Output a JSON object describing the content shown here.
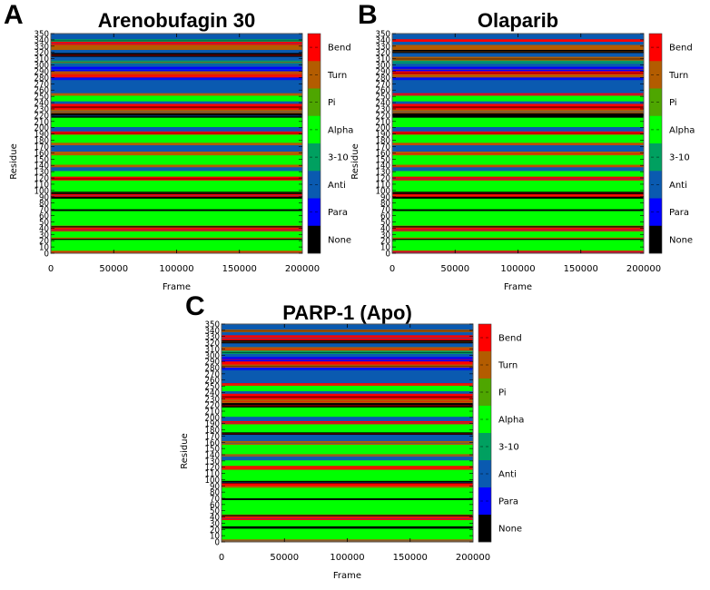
{
  "figure": {
    "panels": [
      {
        "letter": "A",
        "title": "Arenobufagin 30"
      },
      {
        "letter": "B",
        "title": "Olaparib"
      },
      {
        "letter": "C",
        "title": "PARP-1 (Apo)"
      }
    ]
  },
  "chart_data": [
    {
      "type": "heatmap",
      "panel": "A",
      "title": "Arenobufagin 30",
      "xlabel": "Frame",
      "ylabel": "Residue",
      "xlim": [
        0,
        200000
      ],
      "ylim": [
        0,
        350
      ],
      "xticks": [
        "0",
        "50000",
        "100000",
        "150000",
        "200000"
      ],
      "yticks": [
        "0",
        "10",
        "20",
        "30",
        "40",
        "50",
        "60",
        "70",
        "80",
        "90",
        "100",
        "110",
        "120",
        "130",
        "140",
        "150",
        "160",
        "170",
        "180",
        "190",
        "200",
        "210",
        "220",
        "230",
        "240",
        "250",
        "260",
        "270",
        "280",
        "290",
        "300",
        "310",
        "320",
        "330",
        "340",
        "350"
      ],
      "colorbar": {
        "labels": [
          "Bend",
          "Turn",
          "Pi",
          "Alpha",
          "3-10",
          "Anti",
          "Para",
          "None"
        ],
        "colors": [
          "#ff0000",
          "#b35c00",
          "#4ea600",
          "#00ff00",
          "#00a060",
          "#0a5ab0",
          "#0000ff",
          "#000000"
        ]
      },
      "bands": [
        {
          "from": 341,
          "to": 350,
          "ss": "Anti"
        },
        {
          "from": 337,
          "to": 341,
          "ss": "3-10"
        },
        {
          "from": 332,
          "to": 337,
          "ss": "Bend"
        },
        {
          "from": 324,
          "to": 332,
          "ss": "Turn"
        },
        {
          "from": 319,
          "to": 324,
          "ss": "Anti"
        },
        {
          "from": 313,
          "to": 319,
          "ss": "None"
        },
        {
          "from": 307,
          "to": 313,
          "ss": "Anti"
        },
        {
          "from": 302,
          "to": 307,
          "ss": "3-10"
        },
        {
          "from": 297,
          "to": 302,
          "ss": "Anti"
        },
        {
          "from": 290,
          "to": 297,
          "ss": "Para"
        },
        {
          "from": 285,
          "to": 290,
          "ss": "Turn"
        },
        {
          "from": 280,
          "to": 285,
          "ss": "Bend"
        },
        {
          "from": 276,
          "to": 280,
          "ss": "Para"
        },
        {
          "from": 255,
          "to": 276,
          "ss": "Anti"
        },
        {
          "from": 251,
          "to": 255,
          "ss": "Turn"
        },
        {
          "from": 242,
          "to": 251,
          "ss": "Alpha"
        },
        {
          "from": 238,
          "to": 242,
          "ss": "Anti"
        },
        {
          "from": 229,
          "to": 238,
          "ss": "Bend"
        },
        {
          "from": 223,
          "to": 229,
          "ss": "Turn"
        },
        {
          "from": 216,
          "to": 223,
          "ss": "None"
        },
        {
          "from": 201,
          "to": 216,
          "ss": "Alpha"
        },
        {
          "from": 194,
          "to": 201,
          "ss": "Anti"
        },
        {
          "from": 189,
          "to": 194,
          "ss": "Bend"
        },
        {
          "from": 176,
          "to": 189,
          "ss": "Alpha"
        },
        {
          "from": 172,
          "to": 176,
          "ss": "Turn"
        },
        {
          "from": 162,
          "to": 172,
          "ss": "Anti"
        },
        {
          "from": 156,
          "to": 162,
          "ss": "Turn"
        },
        {
          "from": 141,
          "to": 156,
          "ss": "Alpha"
        },
        {
          "from": 137,
          "to": 141,
          "ss": "Turn"
        },
        {
          "from": 131,
          "to": 137,
          "ss": "Anti"
        },
        {
          "from": 122,
          "to": 131,
          "ss": "Alpha"
        },
        {
          "from": 116,
          "to": 122,
          "ss": "Bend"
        },
        {
          "from": 98,
          "to": 116,
          "ss": "Alpha"
        },
        {
          "from": 94,
          "to": 98,
          "ss": "None"
        },
        {
          "from": 90,
          "to": 94,
          "ss": "Bend"
        },
        {
          "from": 87,
          "to": 90,
          "ss": "None"
        },
        {
          "from": 70,
          "to": 87,
          "ss": "Alpha"
        },
        {
          "from": 68,
          "to": 70,
          "ss": "None"
        },
        {
          "from": 44,
          "to": 68,
          "ss": "Alpha"
        },
        {
          "from": 40,
          "to": 44,
          "ss": "Turn"
        },
        {
          "from": 35,
          "to": 40,
          "ss": "Bend"
        },
        {
          "from": 25,
          "to": 35,
          "ss": "Alpha"
        },
        {
          "from": 22,
          "to": 25,
          "ss": "Turn"
        },
        {
          "from": 4,
          "to": 22,
          "ss": "Alpha"
        },
        {
          "from": 0,
          "to": 4,
          "ss": "Turn"
        }
      ]
    },
    {
      "type": "heatmap",
      "panel": "B",
      "title": "Olaparib",
      "xlabel": "Frame",
      "ylabel": "Residue",
      "xlim": [
        0,
        200000
      ],
      "ylim": [
        0,
        350
      ],
      "xticks": [
        "0",
        "50000",
        "100000",
        "150000",
        "200000"
      ],
      "yticks": [
        "0",
        "10",
        "20",
        "30",
        "40",
        "50",
        "60",
        "70",
        "80",
        "90",
        "100",
        "110",
        "120",
        "130",
        "140",
        "150",
        "160",
        "170",
        "180",
        "190",
        "200",
        "210",
        "220",
        "230",
        "240",
        "250",
        "260",
        "270",
        "280",
        "290",
        "300",
        "310",
        "320",
        "330",
        "340",
        "350"
      ],
      "colorbar": {
        "labels": [
          "Bend",
          "Turn",
          "Pi",
          "Alpha",
          "3-10",
          "Anti",
          "Para",
          "None"
        ],
        "colors": [
          "#ff0000",
          "#b35c00",
          "#4ea600",
          "#00ff00",
          "#00a060",
          "#0a5ab0",
          "#0000ff",
          "#000000"
        ]
      },
      "bands": [
        {
          "from": 341,
          "to": 350,
          "ss": "Anti"
        },
        {
          "from": 337,
          "to": 341,
          "ss": "Bend"
        },
        {
          "from": 332,
          "to": 337,
          "ss": "Anti"
        },
        {
          "from": 324,
          "to": 332,
          "ss": "Turn"
        },
        {
          "from": 319,
          "to": 324,
          "ss": "None"
        },
        {
          "from": 313,
          "to": 319,
          "ss": "Anti"
        },
        {
          "from": 307,
          "to": 313,
          "ss": "Turn"
        },
        {
          "from": 302,
          "to": 307,
          "ss": "3-10"
        },
        {
          "from": 297,
          "to": 302,
          "ss": "Anti"
        },
        {
          "from": 290,
          "to": 297,
          "ss": "Para"
        },
        {
          "from": 285,
          "to": 290,
          "ss": "Bend"
        },
        {
          "from": 280,
          "to": 285,
          "ss": "Turn"
        },
        {
          "from": 276,
          "to": 280,
          "ss": "Para"
        },
        {
          "from": 255,
          "to": 276,
          "ss": "Anti"
        },
        {
          "from": 251,
          "to": 255,
          "ss": "Bend"
        },
        {
          "from": 242,
          "to": 251,
          "ss": "Alpha"
        },
        {
          "from": 238,
          "to": 242,
          "ss": "Anti"
        },
        {
          "from": 229,
          "to": 238,
          "ss": "Bend"
        },
        {
          "from": 223,
          "to": 229,
          "ss": "Turn"
        },
        {
          "from": 216,
          "to": 223,
          "ss": "None"
        },
        {
          "from": 201,
          "to": 216,
          "ss": "Alpha"
        },
        {
          "from": 194,
          "to": 201,
          "ss": "Anti"
        },
        {
          "from": 189,
          "to": 194,
          "ss": "Bend"
        },
        {
          "from": 176,
          "to": 189,
          "ss": "Alpha"
        },
        {
          "from": 172,
          "to": 176,
          "ss": "Turn"
        },
        {
          "from": 162,
          "to": 172,
          "ss": "Anti"
        },
        {
          "from": 156,
          "to": 162,
          "ss": "Turn"
        },
        {
          "from": 141,
          "to": 156,
          "ss": "Alpha"
        },
        {
          "from": 137,
          "to": 141,
          "ss": "Turn"
        },
        {
          "from": 131,
          "to": 137,
          "ss": "Anti"
        },
        {
          "from": 122,
          "to": 131,
          "ss": "Alpha"
        },
        {
          "from": 116,
          "to": 122,
          "ss": "Bend"
        },
        {
          "from": 98,
          "to": 116,
          "ss": "Alpha"
        },
        {
          "from": 94,
          "to": 98,
          "ss": "None"
        },
        {
          "from": 90,
          "to": 94,
          "ss": "Bend"
        },
        {
          "from": 87,
          "to": 90,
          "ss": "None"
        },
        {
          "from": 70,
          "to": 87,
          "ss": "Alpha"
        },
        {
          "from": 68,
          "to": 70,
          "ss": "None"
        },
        {
          "from": 44,
          "to": 68,
          "ss": "Alpha"
        },
        {
          "from": 40,
          "to": 44,
          "ss": "Turn"
        },
        {
          "from": 35,
          "to": 40,
          "ss": "Bend"
        },
        {
          "from": 25,
          "to": 35,
          "ss": "Alpha"
        },
        {
          "from": 22,
          "to": 25,
          "ss": "Turn"
        },
        {
          "from": 4,
          "to": 22,
          "ss": "Alpha"
        },
        {
          "from": 0,
          "to": 4,
          "ss": "Bend"
        }
      ]
    },
    {
      "type": "heatmap",
      "panel": "C",
      "title": "PARP-1 (Apo)",
      "xlabel": "Frame",
      "ylabel": "Residue",
      "xlim": [
        0,
        200000
      ],
      "ylim": [
        0,
        350
      ],
      "xticks": [
        "0",
        "50000",
        "100000",
        "150000",
        "200000"
      ],
      "yticks": [
        "0",
        "10",
        "20",
        "30",
        "40",
        "50",
        "60",
        "70",
        "80",
        "90",
        "100",
        "110",
        "120",
        "130",
        "140",
        "150",
        "160",
        "170",
        "180",
        "190",
        "200",
        "210",
        "220",
        "230",
        "240",
        "250",
        "260",
        "270",
        "280",
        "290",
        "300",
        "310",
        "320",
        "330",
        "340",
        "350"
      ],
      "colorbar": {
        "labels": [
          "Bend",
          "Turn",
          "Pi",
          "Alpha",
          "3-10",
          "Anti",
          "Para",
          "None"
        ],
        "colors": [
          "#ff0000",
          "#b35c00",
          "#4ea600",
          "#00ff00",
          "#00a060",
          "#0a5ab0",
          "#0000ff",
          "#000000"
        ]
      },
      "bands": [
        {
          "from": 341,
          "to": 350,
          "ss": "Anti"
        },
        {
          "from": 337,
          "to": 341,
          "ss": "Turn"
        },
        {
          "from": 332,
          "to": 337,
          "ss": "Anti"
        },
        {
          "from": 324,
          "to": 332,
          "ss": "Bend"
        },
        {
          "from": 319,
          "to": 324,
          "ss": "None"
        },
        {
          "from": 313,
          "to": 319,
          "ss": "Anti"
        },
        {
          "from": 307,
          "to": 313,
          "ss": "Turn"
        },
        {
          "from": 302,
          "to": 307,
          "ss": "3-10"
        },
        {
          "from": 297,
          "to": 302,
          "ss": "Anti"
        },
        {
          "from": 290,
          "to": 297,
          "ss": "Para"
        },
        {
          "from": 285,
          "to": 290,
          "ss": "Bend"
        },
        {
          "from": 280,
          "to": 285,
          "ss": "Turn"
        },
        {
          "from": 276,
          "to": 280,
          "ss": "Para"
        },
        {
          "from": 255,
          "to": 276,
          "ss": "Anti"
        },
        {
          "from": 251,
          "to": 255,
          "ss": "Bend"
        },
        {
          "from": 242,
          "to": 251,
          "ss": "Alpha"
        },
        {
          "from": 238,
          "to": 242,
          "ss": "Anti"
        },
        {
          "from": 229,
          "to": 238,
          "ss": "Bend"
        },
        {
          "from": 223,
          "to": 229,
          "ss": "Turn"
        },
        {
          "from": 216,
          "to": 223,
          "ss": "None"
        },
        {
          "from": 201,
          "to": 216,
          "ss": "Alpha"
        },
        {
          "from": 194,
          "to": 201,
          "ss": "Anti"
        },
        {
          "from": 189,
          "to": 194,
          "ss": "Bend"
        },
        {
          "from": 176,
          "to": 189,
          "ss": "Alpha"
        },
        {
          "from": 172,
          "to": 176,
          "ss": "None"
        },
        {
          "from": 162,
          "to": 172,
          "ss": "Anti"
        },
        {
          "from": 156,
          "to": 162,
          "ss": "Turn"
        },
        {
          "from": 141,
          "to": 156,
          "ss": "Alpha"
        },
        {
          "from": 137,
          "to": 141,
          "ss": "Turn"
        },
        {
          "from": 131,
          "to": 137,
          "ss": "Anti"
        },
        {
          "from": 122,
          "to": 131,
          "ss": "Alpha"
        },
        {
          "from": 116,
          "to": 122,
          "ss": "Bend"
        },
        {
          "from": 98,
          "to": 116,
          "ss": "Alpha"
        },
        {
          "from": 94,
          "to": 98,
          "ss": "None"
        },
        {
          "from": 90,
          "to": 94,
          "ss": "Bend"
        },
        {
          "from": 87,
          "to": 90,
          "ss": "Turn"
        },
        {
          "from": 70,
          "to": 87,
          "ss": "Alpha"
        },
        {
          "from": 68,
          "to": 70,
          "ss": "None"
        },
        {
          "from": 44,
          "to": 68,
          "ss": "Alpha"
        },
        {
          "from": 40,
          "to": 44,
          "ss": "Turn"
        },
        {
          "from": 35,
          "to": 40,
          "ss": "Bend"
        },
        {
          "from": 25,
          "to": 35,
          "ss": "Alpha"
        },
        {
          "from": 22,
          "to": 25,
          "ss": "None"
        },
        {
          "from": 4,
          "to": 22,
          "ss": "Alpha"
        },
        {
          "from": 0,
          "to": 4,
          "ss": "Turn"
        }
      ]
    }
  ]
}
